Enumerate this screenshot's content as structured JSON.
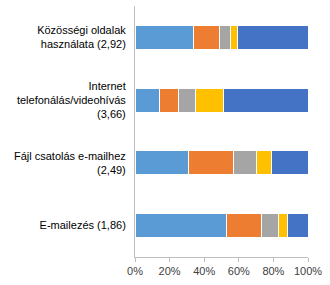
{
  "chart_data": {
    "type": "bar",
    "orientation": "horizontal",
    "stacked": true,
    "grid": false,
    "categories": [
      "Közösségi oldalak használata (2,92)",
      "Internet telefonálás/videohívás (3,66)",
      "Fájl csatolás e-mailhez (2,49)",
      "E-mailezés (1,86)"
    ],
    "series": [
      {
        "color": "#5b9bd5",
        "values": [
          34,
          14,
          31,
          53
        ]
      },
      {
        "color": "#ed7d31",
        "values": [
          15,
          11,
          26,
          20
        ]
      },
      {
        "color": "#a5a5a5",
        "values": [
          6,
          10,
          13,
          10
        ]
      },
      {
        "color": "#ffc000",
        "values": [
          4,
          16,
          9,
          5
        ]
      },
      {
        "color": "#4472c4",
        "values": [
          41,
          49,
          21,
          12
        ]
      }
    ],
    "xlim": [
      0,
      100
    ],
    "xticks": [
      {
        "value": 0,
        "label": "0%"
      },
      {
        "value": 20,
        "label": "20%"
      },
      {
        "value": 40,
        "label": "40%"
      },
      {
        "value": 60,
        "label": "60%"
      },
      {
        "value": 80,
        "label": "80%"
      },
      {
        "value": 100,
        "label": "100%"
      }
    ]
  }
}
